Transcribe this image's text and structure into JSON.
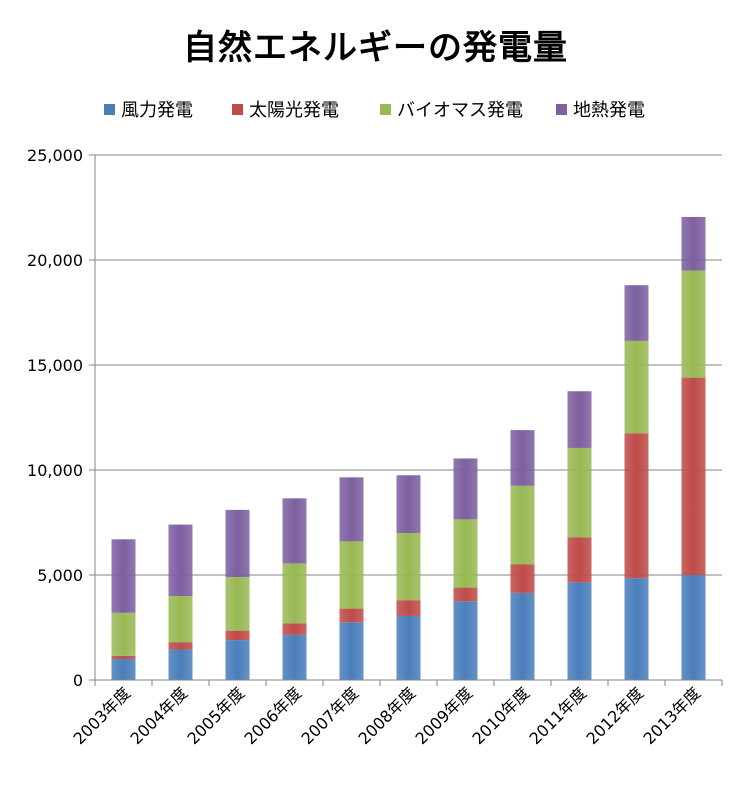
{
  "chart_data": {
    "type": "bar",
    "stacked": true,
    "title": "自然エネルギーの発電量",
    "xlabel": "",
    "ylabel": "",
    "ylim": [
      0,
      25000
    ],
    "yticks": [
      0,
      5000,
      10000,
      15000,
      20000,
      25000
    ],
    "ytick_labels": [
      "0",
      "5,000",
      "10,000",
      "15,000",
      "20,000",
      "25,000"
    ],
    "grid": true,
    "legend_position": "top",
    "categories": [
      "2003年度",
      "2004年度",
      "2005年度",
      "2006年度",
      "2007年度",
      "2008年度",
      "2009年度",
      "2010年度",
      "2011年度",
      "2012年度",
      "2013年度"
    ],
    "series": [
      {
        "name": "風力発電",
        "color": "#4a7ebb",
        "values": [
          1000,
          1450,
          1900,
          2150,
          2750,
          3050,
          3750,
          4150,
          4650,
          4850,
          5000
        ]
      },
      {
        "name": "太陽光発電",
        "color": "#be4b48",
        "values": [
          150,
          350,
          450,
          550,
          650,
          750,
          650,
          1350,
          2150,
          6900,
          9400
        ]
      },
      {
        "name": "バイオマス発電",
        "color": "#98b954",
        "values": [
          2050,
          2200,
          2550,
          2850,
          3200,
          3200,
          3250,
          3750,
          4250,
          4400,
          5100
        ]
      },
      {
        "name": "地熱発電",
        "color": "#7d60a0",
        "values": [
          3500,
          3400,
          3200,
          3100,
          3050,
          2750,
          2900,
          2650,
          2700,
          2650,
          2550
        ]
      }
    ]
  }
}
